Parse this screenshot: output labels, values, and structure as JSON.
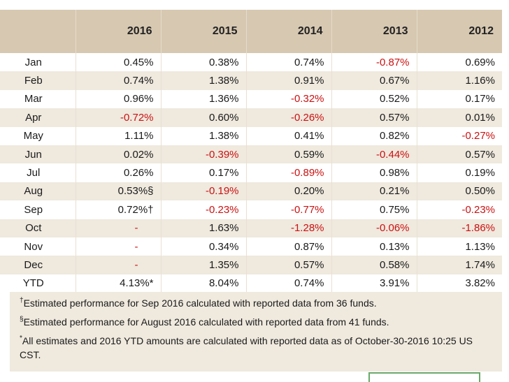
{
  "table": {
    "years": [
      "2016",
      "2015",
      "2014",
      "2013",
      "2012"
    ],
    "rows": [
      {
        "month": "Jan",
        "values": [
          "0.45%",
          "0.38%",
          "0.74%",
          "-0.87%",
          "0.69%"
        ],
        "neg": [
          false,
          false,
          false,
          true,
          false
        ]
      },
      {
        "month": "Feb",
        "values": [
          "0.74%",
          "1.38%",
          "0.91%",
          "0.67%",
          "1.16%"
        ],
        "neg": [
          false,
          false,
          false,
          false,
          false
        ]
      },
      {
        "month": "Mar",
        "values": [
          "0.96%",
          "1.36%",
          "-0.32%",
          "0.52%",
          "0.17%"
        ],
        "neg": [
          false,
          false,
          true,
          false,
          false
        ]
      },
      {
        "month": "Apr",
        "values": [
          "-0.72%",
          "0.60%",
          "-0.26%",
          "0.57%",
          "0.01%"
        ],
        "neg": [
          true,
          false,
          true,
          false,
          false
        ]
      },
      {
        "month": "May",
        "values": [
          "1.11%",
          "1.38%",
          "0.41%",
          "0.82%",
          "-0.27%"
        ],
        "neg": [
          false,
          false,
          false,
          false,
          true
        ]
      },
      {
        "month": "Jun",
        "values": [
          "0.02%",
          "-0.39%",
          "0.59%",
          "-0.44%",
          "0.57%"
        ],
        "neg": [
          false,
          true,
          false,
          true,
          false
        ]
      },
      {
        "month": "Jul",
        "values": [
          "0.26%",
          "0.17%",
          "-0.89%",
          "0.98%",
          "0.19%"
        ],
        "neg": [
          false,
          false,
          true,
          false,
          false
        ]
      },
      {
        "month": "Aug",
        "values": [
          "0.53%§",
          "-0.19%",
          "0.20%",
          "0.21%",
          "0.50%"
        ],
        "neg": [
          false,
          true,
          false,
          false,
          false
        ]
      },
      {
        "month": "Sep",
        "values": [
          "0.72%†",
          "-0.23%",
          "-0.77%",
          "0.75%",
          "-0.23%"
        ],
        "neg": [
          false,
          true,
          true,
          false,
          true
        ]
      },
      {
        "month": "Oct",
        "values": [
          "-",
          "1.63%",
          "-1.28%",
          "-0.06%",
          "-1.86%"
        ],
        "neg": [
          true,
          false,
          true,
          true,
          true
        ]
      },
      {
        "month": "Nov",
        "values": [
          "-",
          "0.34%",
          "0.87%",
          "0.13%",
          "1.13%"
        ],
        "neg": [
          true,
          false,
          false,
          false,
          false
        ]
      },
      {
        "month": "Dec",
        "values": [
          "-",
          "1.35%",
          "0.57%",
          "0.58%",
          "1.74%"
        ],
        "neg": [
          true,
          false,
          false,
          false,
          false
        ]
      },
      {
        "month": "YTD",
        "values": [
          "4.13%*",
          "8.04%",
          "0.74%",
          "3.91%",
          "3.82%"
        ],
        "neg": [
          false,
          false,
          false,
          false,
          false
        ]
      }
    ]
  },
  "notes": [
    {
      "mark": "†",
      "text": "Estimated performance for Sep 2016 calculated with reported data from 36 funds."
    },
    {
      "mark": "§",
      "text": "Estimated performance for August 2016 calculated with reported data from 41 funds."
    },
    {
      "mark": "*",
      "text": "All estimates and 2016 YTD amounts are calculated with reported data as of October-30-2016 10:25 US CST."
    }
  ],
  "colors": {
    "header_bg": "#d7c8b1",
    "stripe_bg": "#efe9de",
    "negative": "#cc1111",
    "button_border": "#6aa86a"
  }
}
